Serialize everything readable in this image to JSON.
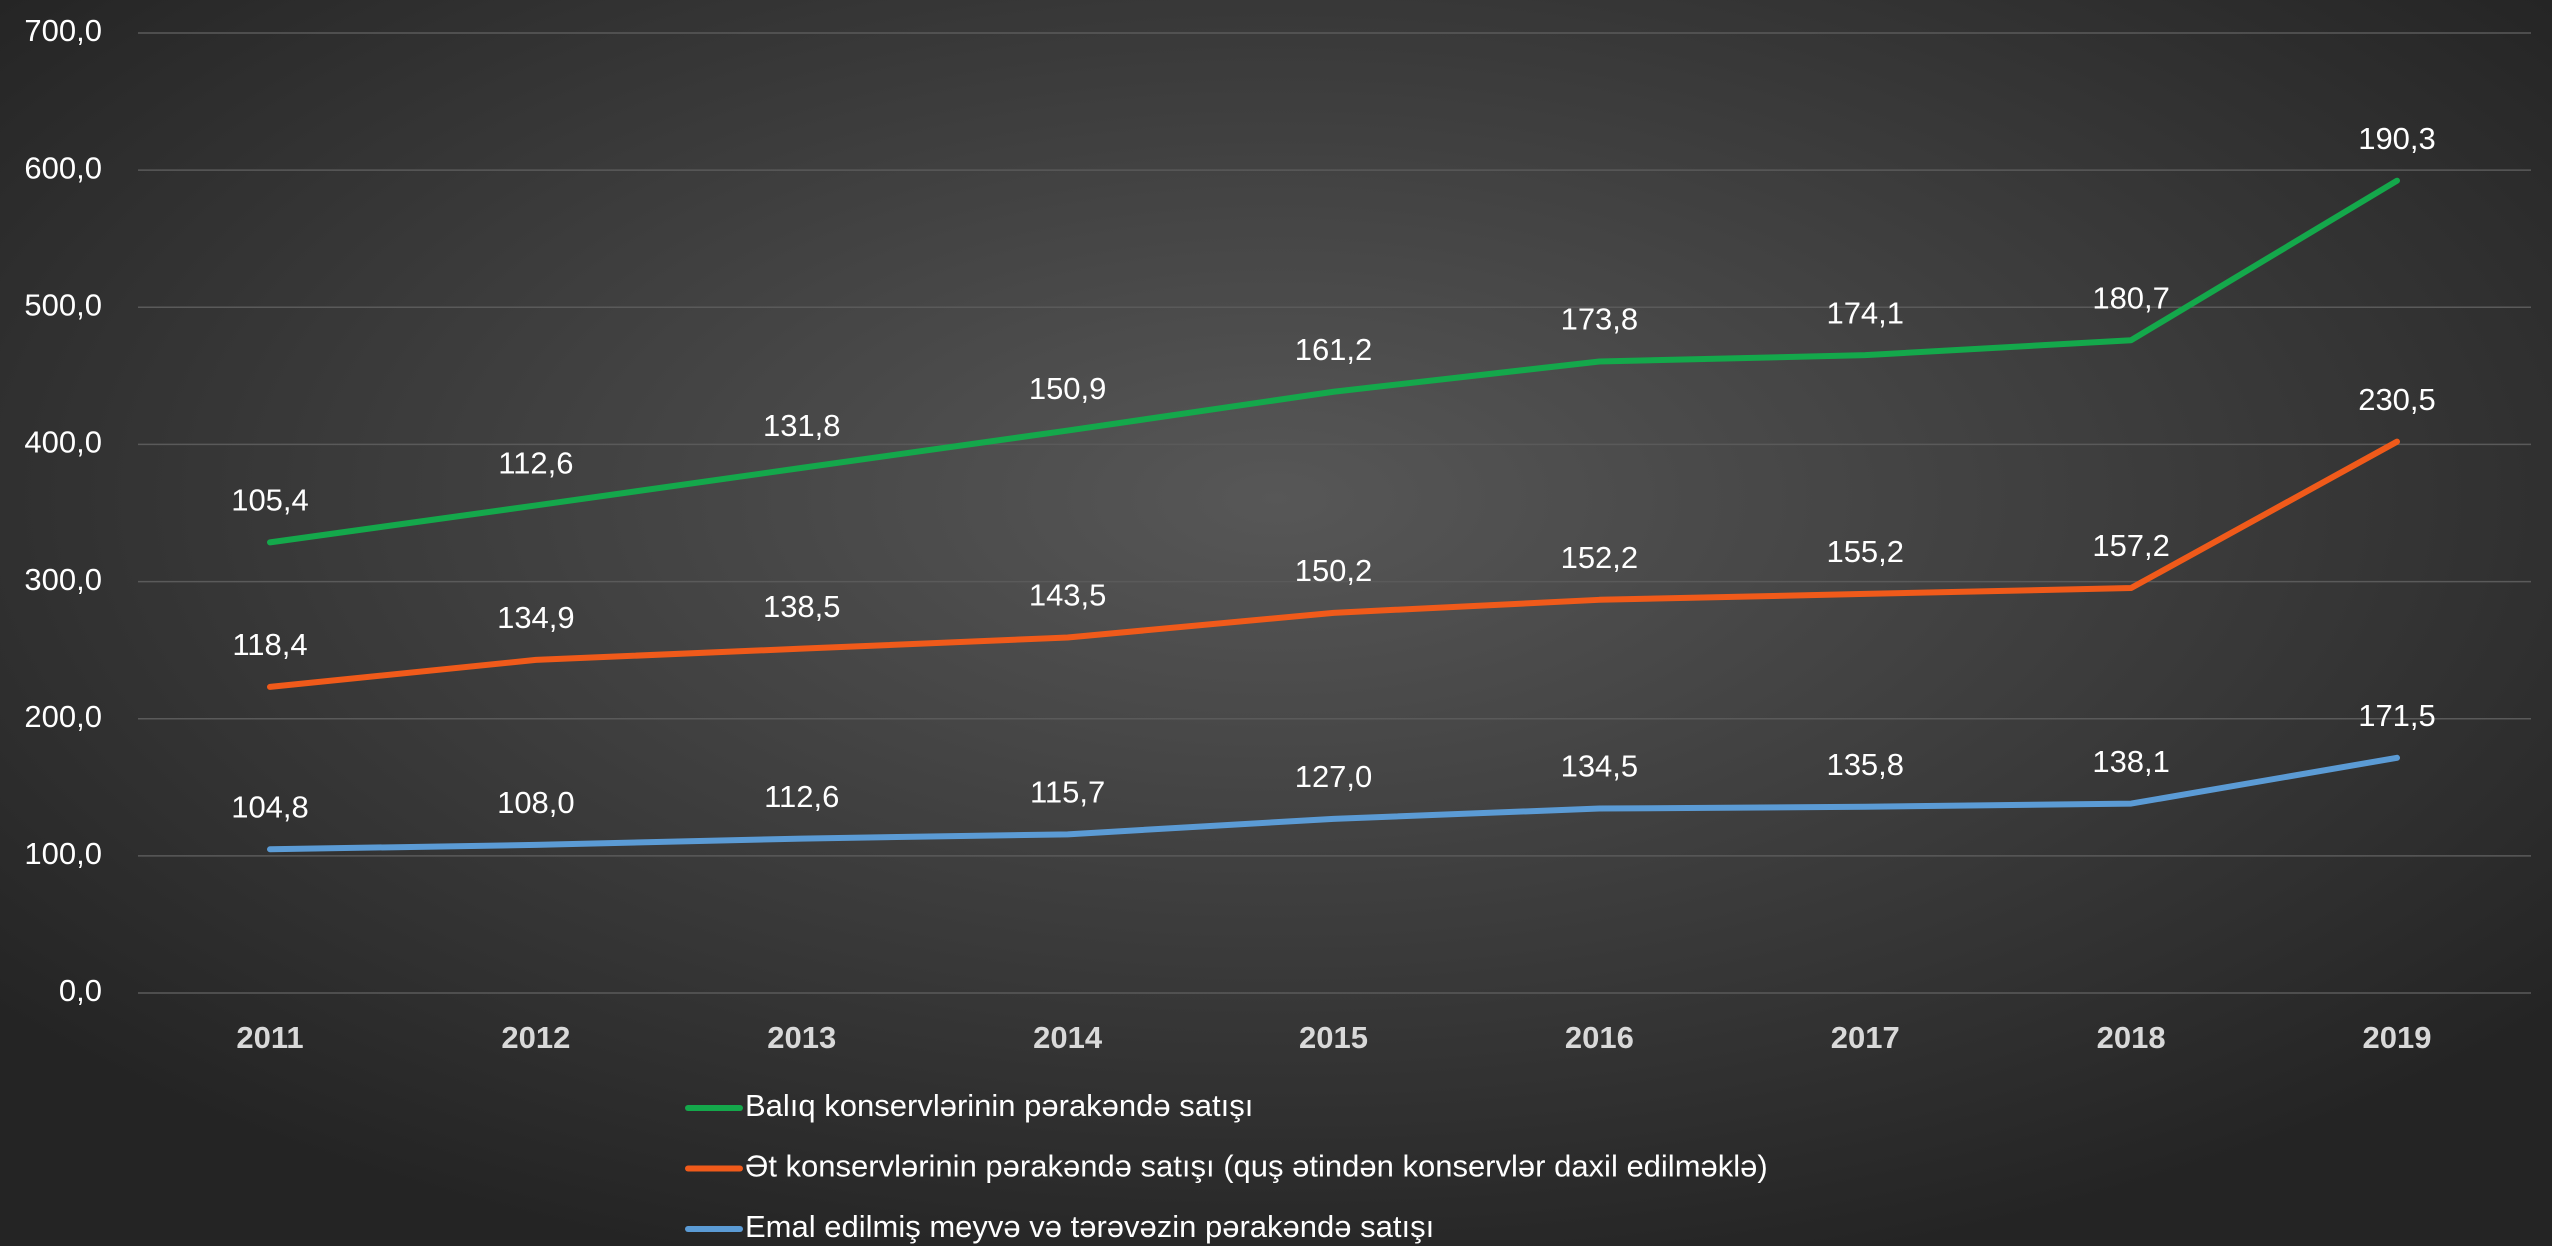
{
  "chart_data": {
    "type": "line",
    "stacked": true,
    "categories": [
      "2011",
      "2012",
      "2013",
      "2014",
      "2015",
      "2016",
      "2017",
      "2018",
      "2019"
    ],
    "series": [
      {
        "name": "Balıq konservlərinin pərakəndə satışı",
        "color": "#14a84b",
        "values": [
          105.4,
          112.6,
          131.8,
          150.9,
          161.2,
          173.8,
          174.1,
          180.7,
          190.3
        ],
        "value_labels": [
          "105,4",
          "112,6",
          "131,8",
          "150,9",
          "161,2",
          "173,8",
          "174,1",
          "180,7",
          "190,3"
        ]
      },
      {
        "name": "Ət konservlərinin pərakəndə satışı (quş ətindən konservlər daxil edilməklə)",
        "color": "#f05a1a",
        "values": [
          118.4,
          134.9,
          138.5,
          143.5,
          150.2,
          152.2,
          155.2,
          157.2,
          230.5
        ],
        "value_labels": [
          "118,4",
          "134,9",
          "138,5",
          "143,5",
          "150,2",
          "152,2",
          "155,2",
          "157,2",
          "230,5"
        ]
      },
      {
        "name": "Emal edilmiş meyvə və tərəvəzin pərakəndə satışı",
        "color": "#5b9bd5",
        "values": [
          104.8,
          108.0,
          112.6,
          115.7,
          127.0,
          134.5,
          135.8,
          138.1,
          171.5
        ],
        "value_labels": [
          "104,8",
          "108,0",
          "112,6",
          "115,7",
          "127,0",
          "134,5",
          "135,8",
          "138,1",
          "171,5"
        ]
      }
    ],
    "ylim": [
      0,
      700
    ],
    "yticks": [
      {
        "value": 0,
        "label": "0,0"
      },
      {
        "value": 100,
        "label": "100,0"
      },
      {
        "value": 200,
        "label": "200,0"
      },
      {
        "value": 300,
        "label": "300,0"
      },
      {
        "value": 400,
        "label": "400,0"
      },
      {
        "value": 500,
        "label": "500,0"
      },
      {
        "value": 600,
        "label": "600,0"
      },
      {
        "value": 700,
        "label": "700,0"
      }
    ],
    "grid": true,
    "legend": "bottom"
  }
}
